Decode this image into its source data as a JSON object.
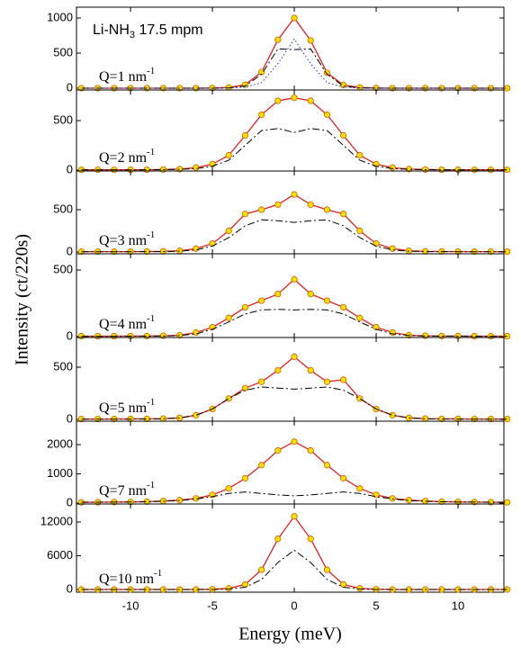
{
  "ylabel": "Intensity (ct/220s)",
  "chart_data": [
    {
      "type": "line",
      "xlim": [
        -13.3,
        12.8
      ],
      "xticks": [
        -10,
        -5,
        0,
        5,
        10
      ],
      "ylim": [
        -26,
        1154
      ],
      "yticks": [
        0,
        500,
        1000
      ],
      "annotation": {
        "text": "Li-NH",
        "sub": "3",
        "rest": " 17.5 mpm"
      },
      "label": {
        "text": "Q=1 nm",
        "sup": "-1"
      },
      "x": [
        -13,
        -12,
        -11,
        -10,
        -9,
        -8,
        -7,
        -6,
        -5,
        -4,
        -3,
        -2,
        -1,
        0,
        1,
        2,
        3,
        4,
        5,
        6,
        7,
        8,
        9,
        10,
        11,
        12,
        13
      ],
      "series": [
        {
          "color": "#e02020",
          "style": "points",
          "values": [
            0,
            0,
            0,
            0,
            0,
            0,
            0,
            0,
            2,
            10,
            50,
            230,
            690,
            1000,
            680,
            220,
            45,
            10,
            2,
            0,
            0,
            0,
            0,
            0,
            0,
            0,
            0
          ]
        },
        {
          "color": "#000000",
          "style": "dashdot",
          "values": [
            0,
            0,
            0,
            0,
            0,
            0,
            0,
            0,
            0,
            4,
            30,
            200,
            560,
            550,
            560,
            200,
            30,
            4,
            0,
            0,
            0,
            0,
            0,
            0,
            0,
            0,
            0
          ]
        },
        {
          "color": "#2030d0",
          "style": "dotted",
          "values": [
            0,
            0,
            0,
            0,
            0,
            0,
            0,
            0,
            0,
            2,
            15,
            80,
            350,
            700,
            350,
            80,
            15,
            2,
            0,
            0,
            0,
            0,
            0,
            0,
            0,
            0,
            0
          ]
        }
      ]
    },
    {
      "type": "line",
      "xlim": [
        -13.3,
        12.8
      ],
      "xticks": [
        -10,
        -5,
        0,
        5,
        10
      ],
      "ylim": [
        -9,
        809
      ],
      "yticks": [
        0,
        500
      ],
      "label": {
        "text": "Q=2 nm",
        "sup": "-1"
      },
      "x": [
        -13,
        -12,
        -11,
        -10,
        -9,
        -8,
        -7,
        -6,
        -5,
        -4,
        -3,
        -2,
        -1,
        0,
        1,
        2,
        3,
        4,
        5,
        6,
        7,
        8,
        9,
        10,
        11,
        12,
        13
      ],
      "series": [
        {
          "color": "#e02020",
          "style": "points",
          "values": [
            3,
            3,
            3,
            3,
            4,
            6,
            10,
            25,
            60,
            150,
            350,
            560,
            700,
            730,
            700,
            560,
            350,
            150,
            60,
            25,
            10,
            6,
            4,
            3,
            3,
            3,
            3
          ]
        },
        {
          "color": "#000000",
          "style": "dashdot",
          "values": [
            2,
            2,
            2,
            3,
            3,
            4,
            8,
            15,
            40,
            100,
            250,
            400,
            420,
            380,
            420,
            400,
            250,
            100,
            40,
            15,
            8,
            4,
            3,
            3,
            2,
            2,
            2
          ]
        }
      ]
    },
    {
      "type": "line",
      "xlim": [
        -13.3,
        12.8
      ],
      "xticks": [
        -10,
        -5,
        0,
        5,
        10
      ],
      "ylim": [
        -21,
        957
      ],
      "yticks": [
        0,
        500
      ],
      "label": {
        "text": "Q=3 nm",
        "sup": "-1"
      },
      "x": [
        -13,
        -12,
        -11,
        -10,
        -9,
        -8,
        -7,
        -6,
        -5,
        -4,
        -3,
        -2,
        -1,
        0,
        1,
        2,
        3,
        4,
        5,
        6,
        7,
        8,
        9,
        10,
        11,
        12,
        13
      ],
      "series": [
        {
          "color": "#e02020",
          "style": "points",
          "values": [
            5,
            5,
            5,
            5,
            6,
            8,
            15,
            40,
            100,
            250,
            450,
            500,
            560,
            680,
            560,
            500,
            450,
            250,
            100,
            40,
            15,
            8,
            6,
            5,
            5,
            5,
            5
          ]
        },
        {
          "color": "#000000",
          "style": "dashdot",
          "values": [
            3,
            3,
            3,
            3,
            4,
            5,
            10,
            25,
            70,
            170,
            310,
            380,
            370,
            350,
            370,
            380,
            310,
            170,
            70,
            25,
            10,
            5,
            4,
            3,
            3,
            3,
            3
          ]
        }
      ]
    },
    {
      "type": "line",
      "xlim": [
        -13.3,
        12.8
      ],
      "xticks": [
        -10,
        -5,
        0,
        5,
        10
      ],
      "ylim": [
        -7,
        622
      ],
      "yticks": [
        0,
        500
      ],
      "label": {
        "text": "Q=4 nm",
        "sup": "-1"
      },
      "x": [
        -13,
        -12,
        -11,
        -10,
        -9,
        -8,
        -7,
        -6,
        -5,
        -4,
        -3,
        -2,
        -1,
        0,
        1,
        2,
        3,
        4,
        5,
        6,
        7,
        8,
        9,
        10,
        11,
        12,
        13
      ],
      "series": [
        {
          "color": "#e02020",
          "style": "points",
          "values": [
            3,
            3,
            3,
            4,
            4,
            6,
            10,
            30,
            70,
            140,
            220,
            270,
            320,
            430,
            320,
            270,
            220,
            140,
            70,
            30,
            10,
            6,
            4,
            4,
            3,
            3,
            3
          ]
        },
        {
          "color": "#000000",
          "style": "dashdot",
          "values": [
            2,
            2,
            2,
            3,
            3,
            4,
            8,
            20,
            55,
            110,
            170,
            200,
            205,
            200,
            205,
            200,
            170,
            110,
            55,
            20,
            8,
            4,
            3,
            3,
            2,
            2,
            2
          ]
        }
      ]
    },
    {
      "type": "line",
      "xlim": [
        -13.3,
        12.8
      ],
      "xticks": [
        -10,
        -5,
        0,
        5,
        10
      ],
      "ylim": [
        -17,
        784
      ],
      "yticks": [
        0,
        500
      ],
      "label": {
        "text": "Q=5 nm",
        "sup": "-1"
      },
      "x": [
        -13,
        -12,
        -11,
        -10,
        -9,
        -8,
        -7,
        -6,
        -5,
        -4,
        -3,
        -2,
        -1,
        0,
        1,
        2,
        3,
        4,
        5,
        6,
        7,
        8,
        9,
        10,
        11,
        12,
        13
      ],
      "series": [
        {
          "color": "#e02020",
          "style": "points",
          "values": [
            4,
            4,
            4,
            5,
            5,
            8,
            15,
            40,
            100,
            200,
            300,
            360,
            470,
            600,
            470,
            360,
            380,
            200,
            100,
            40,
            15,
            8,
            5,
            5,
            4,
            4,
            4
          ]
        },
        {
          "color": "#000000",
          "style": "dashdot",
          "values": [
            3,
            3,
            3,
            3,
            4,
            6,
            15,
            40,
            100,
            200,
            280,
            310,
            300,
            290,
            300,
            310,
            280,
            200,
            100,
            40,
            15,
            6,
            4,
            3,
            3,
            3,
            3
          ]
        }
      ]
    },
    {
      "type": "line",
      "xlim": [
        -13.3,
        12.8
      ],
      "xticks": [
        -10,
        -5,
        0,
        5,
        10
      ],
      "ylim": [
        -31,
        2800
      ],
      "yticks": [
        0,
        1000,
        2000
      ],
      "label": {
        "text": "Q=7 nm",
        "sup": "-1"
      },
      "x": [
        -13,
        -12,
        -11,
        -10,
        -9,
        -8,
        -7,
        -6,
        -5,
        -4,
        -3,
        -2,
        -1,
        0,
        1,
        2,
        3,
        4,
        5,
        6,
        7,
        8,
        9,
        10,
        11,
        12,
        13
      ],
      "series": [
        {
          "color": "#e02020",
          "style": "points",
          "values": [
            25,
            30,
            35,
            40,
            50,
            70,
            100,
            160,
            280,
            500,
            850,
            1300,
            1800,
            2100,
            1800,
            1300,
            850,
            500,
            280,
            160,
            100,
            70,
            50,
            40,
            35,
            30,
            25
          ]
        },
        {
          "color": "#000000",
          "style": "dashdot",
          "values": [
            30,
            32,
            35,
            38,
            45,
            60,
            90,
            140,
            220,
            330,
            380,
            330,
            280,
            250,
            280,
            330,
            380,
            330,
            220,
            140,
            90,
            60,
            45,
            38,
            35,
            32,
            30
          ]
        }
      ]
    },
    {
      "type": "line",
      "xlim": [
        -13.3,
        12.8
      ],
      "xticks": [
        -10,
        -5,
        0,
        5,
        10
      ],
      "ylim": [
        -480,
        15200
      ],
      "yticks": [
        0,
        6000,
        12000
      ],
      "label": {
        "text": "Q=10 nm",
        "sup": "-1"
      },
      "xlabel": "Energy (meV)",
      "x": [
        -13,
        -12,
        -11,
        -10,
        -9,
        -8,
        -7,
        -6,
        -5,
        -4,
        -3,
        -2,
        -1,
        0,
        1,
        2,
        3,
        4,
        5,
        6,
        7,
        8,
        9,
        10,
        11,
        12,
        13
      ],
      "series": [
        {
          "color": "#e02020",
          "style": "points",
          "values": [
            0,
            0,
            0,
            0,
            0,
            0,
            0,
            0,
            50,
            200,
            900,
            3500,
            9000,
            13000,
            9000,
            3500,
            900,
            200,
            50,
            0,
            0,
            0,
            0,
            0,
            0,
            0,
            0
          ]
        },
        {
          "color": "#000000",
          "style": "dashdot",
          "values": [
            0,
            0,
            0,
            0,
            0,
            0,
            0,
            0,
            0,
            80,
            400,
            1800,
            4800,
            7000,
            4800,
            1800,
            400,
            80,
            0,
            0,
            0,
            0,
            0,
            0,
            0,
            0,
            0
          ]
        }
      ]
    }
  ]
}
